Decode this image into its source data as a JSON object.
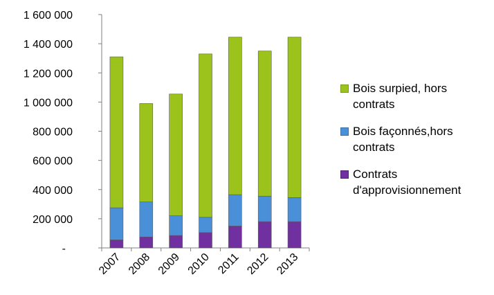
{
  "chart_data": {
    "type": "bar",
    "stacked": true,
    "categories": [
      "2007",
      "2008",
      "2009",
      "2010",
      "2011",
      "2012",
      "2013"
    ],
    "series": [
      {
        "name": "Contrats d'approvisionnement",
        "color": "#7030A0",
        "values": [
          55000,
          75000,
          85000,
          105000,
          150000,
          180000,
          180000
        ]
      },
      {
        "name": "Bois façonnés,hors contrats",
        "color": "#4A90D9",
        "values": [
          220000,
          240000,
          135000,
          105000,
          215000,
          175000,
          165000
        ]
      },
      {
        "name": "Bois surpied, hors contrats",
        "color": "#9BC31C",
        "values": [
          1035000,
          675000,
          835000,
          1120000,
          1080000,
          995000,
          1100000
        ]
      }
    ],
    "yticks": [
      "-",
      "200 000",
      "400 000",
      "600 000",
      "800 000",
      "1 000 000",
      "1 200 000",
      "1 400 000",
      "1 600 000"
    ],
    "ylim": [
      0,
      1600000
    ],
    "legend_position": "right",
    "legend": [
      {
        "label": "Bois surpied, hors contrats",
        "color": "#9BC31C"
      },
      {
        "label": "Bois façonnés,hors contrats",
        "color": "#4A90D9"
      },
      {
        "label": "Contrats d'approvisionnement",
        "color": "#7030A0"
      }
    ]
  }
}
